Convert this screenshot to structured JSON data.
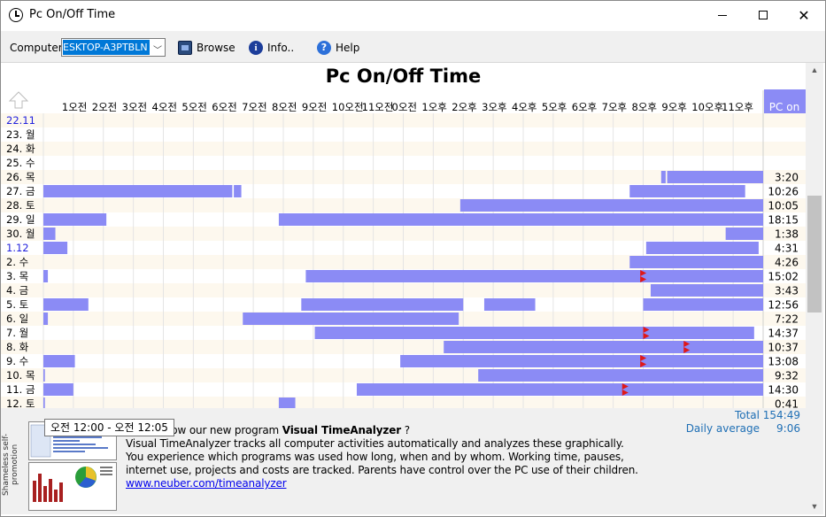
{
  "window": {
    "title": "Pc On/Off Time"
  },
  "toolbar": {
    "computer_label": "Computer",
    "computer_value": "ESKTOP-A3PTBLN",
    "browse_label": "Browse",
    "info_label": "Info..",
    "help_label": "Help"
  },
  "page_title": "Pc On/Off Time",
  "column_header": "PC on",
  "hour_labels": [
    "1오전",
    "2오전",
    "3오전",
    "4오전",
    "5오전",
    "6오전",
    "7오전",
    "8오전",
    "9오전",
    "10오전",
    "11오전",
    "0오전",
    "1오후",
    "2오후",
    "3오후",
    "4오후",
    "5오후",
    "6오후",
    "7오후",
    "8오후",
    "9오후",
    "10오후",
    "11오후"
  ],
  "colors": {
    "bar": "#8b8bf5",
    "marker": "#e01818",
    "alt_row": "#fdf8ee",
    "grid": "#e4e4e4",
    "header_accent": "#8b8bf5",
    "month_label": "#2222dd"
  },
  "chart_data": {
    "type": "table",
    "xlabel": "",
    "ylabel": "",
    "x_range_hours": [
      0,
      24
    ],
    "rows": [
      {
        "day": "22.11",
        "highlight": true,
        "total": "",
        "bars": [],
        "markers": []
      },
      {
        "day": "23. 월",
        "total": "",
        "bars": [],
        "markers": []
      },
      {
        "day": "24. 화",
        "total": "",
        "bars": [],
        "markers": []
      },
      {
        "day": "25. 수",
        "total": "",
        "bars": [],
        "markers": []
      },
      {
        "day": "26. 목",
        "total": "3:20",
        "bars": [
          [
            20.6,
            20.75
          ],
          [
            20.8,
            24
          ]
        ],
        "markers": []
      },
      {
        "day": "27. 금",
        "total": "10:26",
        "bars": [
          [
            0,
            6.3
          ],
          [
            6.35,
            6.6
          ],
          [
            19.55,
            23.4
          ]
        ],
        "markers": []
      },
      {
        "day": "28. 토",
        "total": "10:05",
        "bars": [
          [
            13.9,
            24
          ]
        ],
        "markers": []
      },
      {
        "day": "29. 일",
        "total": "18:15",
        "bars": [
          [
            0,
            2.1
          ],
          [
            7.85,
            24
          ]
        ],
        "markers": []
      },
      {
        "day": "30. 월",
        "total": "1:38",
        "bars": [
          [
            0,
            0.4
          ],
          [
            22.75,
            24
          ]
        ],
        "markers": []
      },
      {
        "day": "1.12",
        "highlight": true,
        "total": "4:31",
        "bars": [
          [
            0,
            0.8
          ],
          [
            20.1,
            23.85
          ]
        ],
        "markers": []
      },
      {
        "day": "2. 수",
        "total": "4:26",
        "bars": [
          [
            19.55,
            24
          ]
        ],
        "markers": []
      },
      {
        "day": "3. 목",
        "total": "15:02",
        "bars": [
          [
            0,
            0.15
          ],
          [
            8.75,
            24
          ]
        ],
        "markers": [
          19.9
        ]
      },
      {
        "day": "4. 금",
        "total": "3:43",
        "bars": [
          [
            20.25,
            24
          ]
        ],
        "markers": []
      },
      {
        "day": "5. 토",
        "total": "12:56",
        "bars": [
          [
            0,
            1.5
          ],
          [
            8.6,
            14.0
          ],
          [
            14.7,
            16.4
          ],
          [
            20.0,
            24
          ]
        ],
        "markers": []
      },
      {
        "day": "6. 일",
        "total": "7:22",
        "bars": [
          [
            0,
            0.15
          ],
          [
            6.65,
            13.85
          ]
        ],
        "markers": []
      },
      {
        "day": "7. 월",
        "total": "14:37",
        "bars": [
          [
            9.05,
            23.7
          ]
        ],
        "markers": [
          20.0
        ]
      },
      {
        "day": "8. 화",
        "total": "10:37",
        "bars": [
          [
            13.35,
            24
          ]
        ],
        "markers": [
          21.35
        ]
      },
      {
        "day": "9. 수",
        "total": "13:08",
        "bars": [
          [
            0,
            1.05
          ],
          [
            11.9,
            24
          ]
        ],
        "markers": [
          19.9
        ]
      },
      {
        "day": "10. 목",
        "total": "9:32",
        "bars": [
          [
            0,
            0.05
          ],
          [
            14.5,
            24
          ]
        ],
        "markers": []
      },
      {
        "day": "11. 금",
        "total": "14:30",
        "bars": [
          [
            0,
            1.0
          ],
          [
            10.45,
            24
          ]
        ],
        "markers": [
          19.3
        ]
      },
      {
        "day": "12. 토",
        "total": "0:41",
        "bars": [
          [
            0,
            0.05
          ],
          [
            7.85,
            8.4
          ]
        ],
        "markers": []
      }
    ]
  },
  "totals": {
    "total_label": "Total",
    "total_value": "154:49",
    "avg_label": "Daily average",
    "avg_value": "9:06"
  },
  "tooltip": "오전 12:00 - 오전 12:05",
  "promo": {
    "side_label": "Shameless self-promotion",
    "line1_pre": "ready know our new program ",
    "line1_bold": "Visual TimeAnalyzer",
    "line1_post": " ?",
    "line2": "Visual TimeAnalyzer tracks all computer activities automatically and analyzes these graphically.",
    "line3": "You experience which programs was used how long, when and by whom. Working time, pauses,",
    "line4": "internet use, projects and costs are tracked. Parents have control over the PC use of their children.",
    "link": "www.neuber.com/timeanalyzer"
  }
}
